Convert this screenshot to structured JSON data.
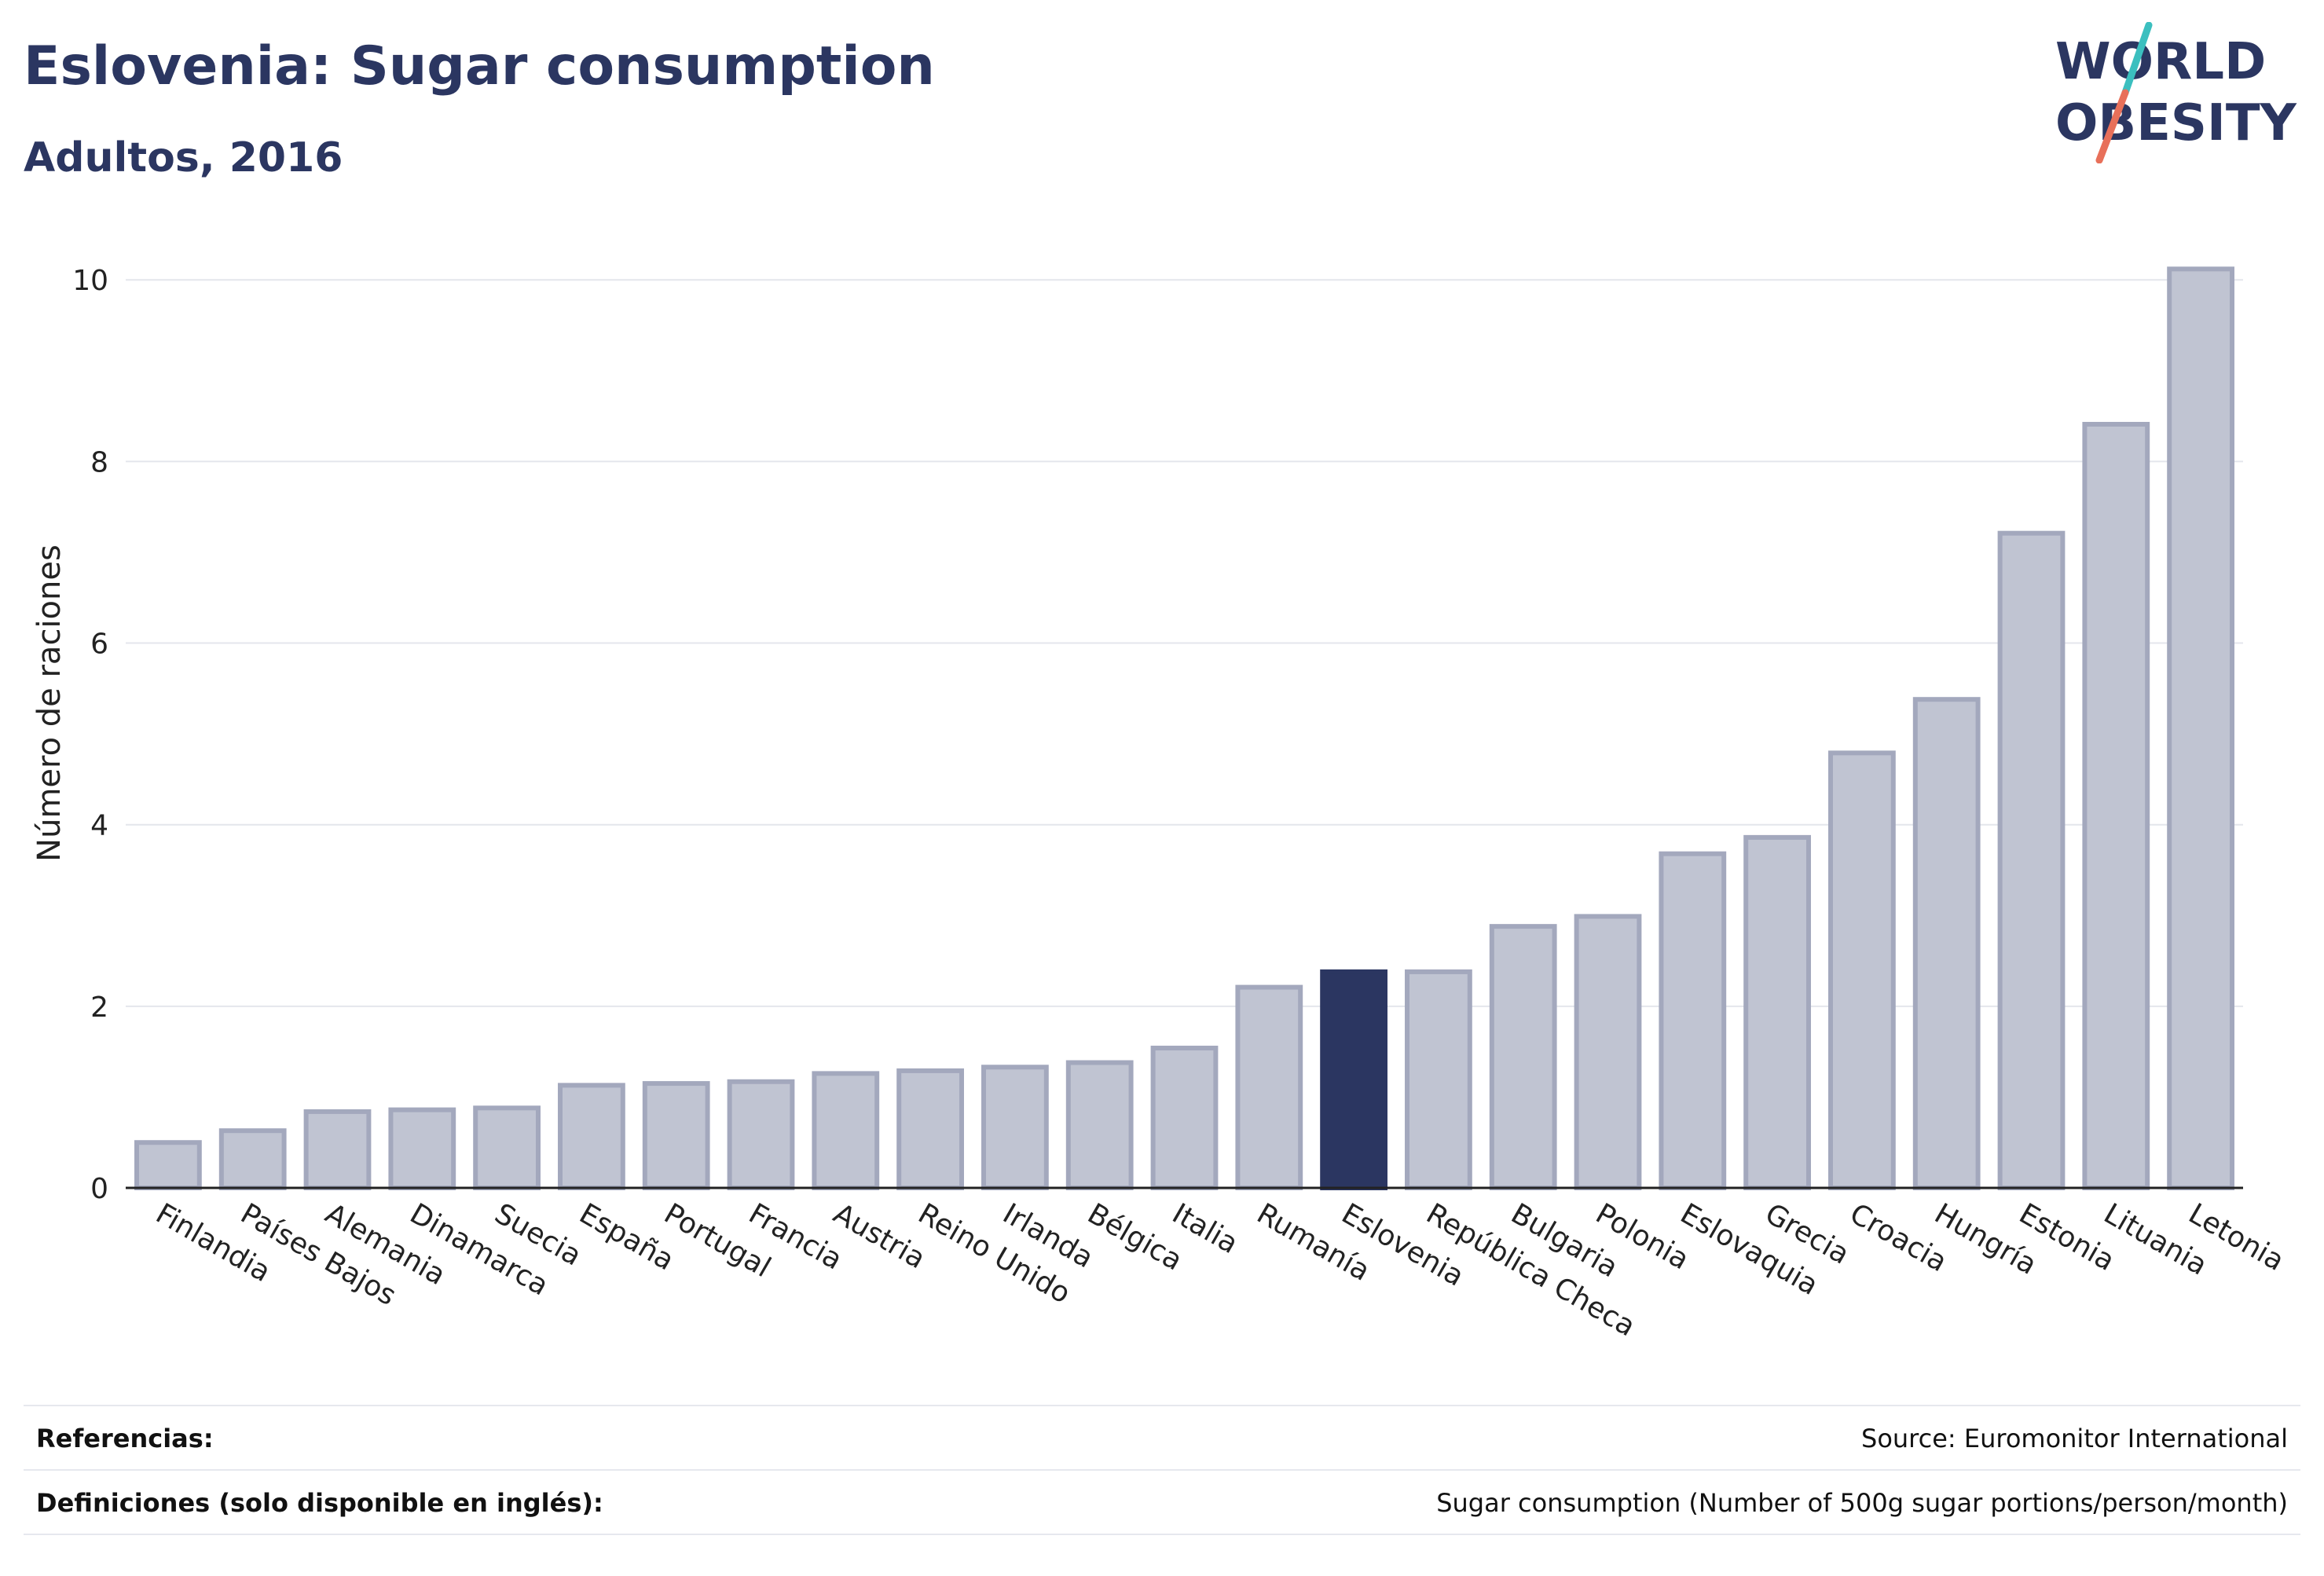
{
  "header": {
    "title": "Eslovenia: Sugar consumption",
    "subtitle": "Adultos, 2016"
  },
  "logo": {
    "line1": "WORLD",
    "line2": "OBESITY",
    "slash_colors": [
      "#3bbfbf",
      "#e8705a"
    ]
  },
  "colors": {
    "bar": "#2b3661",
    "bar_muted_fill": "#c0c4d2",
    "bar_muted_stroke": "#a3a8bd",
    "highlight": "#2b3661",
    "grid": "#e4e6ec",
    "axis": "#222222"
  },
  "chart_data": {
    "type": "bar",
    "ylabel": "Número de raciones",
    "xlabel": "",
    "ylim": [
      0,
      10.4
    ],
    "yticks": [
      0,
      2,
      4,
      6,
      8,
      10
    ],
    "grid": true,
    "highlight": "Eslovenia",
    "categories": [
      "Finlandia",
      "Países Bajos",
      "Alemania",
      "Dinamarca",
      "Suecia",
      "España",
      "Portugal",
      "Francia",
      "Austria",
      "Reino Unido",
      "Irlanda",
      "Bélgica",
      "Italia",
      "Rumanía",
      "Eslovenia",
      "República Checa",
      "Bulgaria",
      "Polonia",
      "Eslovaquia",
      "Grecia",
      "Croacia",
      "Hungría",
      "Estonia",
      "Lituania",
      "Letonia"
    ],
    "values": [
      0.5,
      0.63,
      0.84,
      0.86,
      0.88,
      1.13,
      1.15,
      1.17,
      1.26,
      1.29,
      1.33,
      1.38,
      1.54,
      2.21,
      2.38,
      2.38,
      2.88,
      2.99,
      3.68,
      3.86,
      4.79,
      5.38,
      7.21,
      8.41,
      10.12
    ]
  },
  "footer": {
    "references_label": "Referencias:",
    "references_value": "Source: Euromonitor International",
    "definitions_label": "Definiciones (solo disponible en inglés):",
    "definitions_value": "Sugar consumption (Number of 500g sugar portions/person/month)"
  }
}
